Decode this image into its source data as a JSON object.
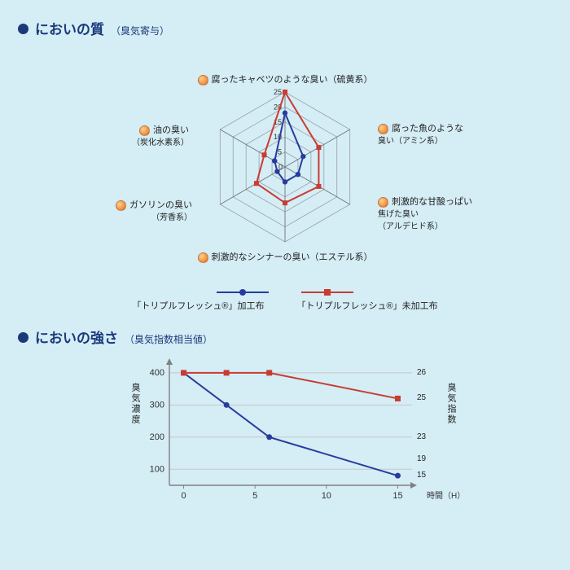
{
  "colors": {
    "page_bg": "#d5edf5",
    "title": "#1a3a7a",
    "bullet": "#1a3a7a",
    "axis_bullet_grad_inner": "#ffd28a",
    "axis_bullet_grad_outer": "#e36b1a",
    "grid": "#9aa0a5",
    "grid_axis": "#6e747a",
    "series_treated": "#283c9e",
    "series_untreated": "#c83c32",
    "line_axis": "#808080",
    "line_grid": "#c7c7c7",
    "tick_text": "#333333"
  },
  "section_quality": {
    "title_main": "においの質",
    "title_sub": "（臭気寄与）"
  },
  "radar": {
    "max": 25,
    "rings": [
      5,
      10,
      15,
      20,
      25
    ],
    "ring_labels": [
      "5",
      "10",
      "15",
      "20",
      "25"
    ],
    "center_label": "0",
    "axes": [
      {
        "label": "腐ったキャベツのような臭い（硫黄系）",
        "pos": "top"
      },
      {
        "label_l1": "腐った魚のような",
        "label_l2": "臭い（アミン系）",
        "pos": "tr"
      },
      {
        "label_l1": "刺激的な甘酸っぱい",
        "label_l2": "焦げた臭い",
        "label_l3": "（アルデヒド系）",
        "pos": "br"
      },
      {
        "label": "刺激的なシンナーの臭い（エステル系）",
        "pos": "bottom"
      },
      {
        "label_l1": "ガソリンの臭い",
        "label_l2": "（芳香系）",
        "pos": "bl"
      },
      {
        "label_l1": "油の臭い",
        "label_l2": "（炭化水素系）",
        "pos": "tl"
      }
    ],
    "series": [
      {
        "name": "treated",
        "label": "「トリプルフレッシュ®」加工布",
        "marker": "circle",
        "values": [
          18,
          7,
          5,
          5,
          3,
          4
        ]
      },
      {
        "name": "untreated",
        "label": "「トリプルフレッシュ®」未加工布",
        "marker": "square",
        "values": [
          25,
          13,
          13,
          12,
          11,
          8
        ]
      }
    ]
  },
  "section_strength": {
    "title_main": "においの強さ",
    "title_sub": "（臭気指数相当値）"
  },
  "line": {
    "x_label": "時間（H）",
    "x_ticks": [
      0,
      5,
      10,
      15
    ],
    "y1_label": "臭気濃度",
    "y1_ticks": [
      100,
      200,
      300,
      400
    ],
    "y2_label": "臭気指数",
    "y2_annot": [
      26,
      25,
      23,
      19,
      15
    ],
    "series": [
      {
        "name": "treated",
        "marker": "circle",
        "points": [
          [
            0,
            400
          ],
          [
            3,
            300
          ],
          [
            6,
            200
          ],
          [
            15,
            80
          ]
        ]
      },
      {
        "name": "untreated",
        "marker": "square",
        "points": [
          [
            0,
            400
          ],
          [
            3,
            400
          ],
          [
            6,
            400
          ],
          [
            15,
            320
          ]
        ]
      }
    ],
    "x_range": [
      -1,
      16
    ],
    "y_range": [
      50,
      430
    ]
  }
}
